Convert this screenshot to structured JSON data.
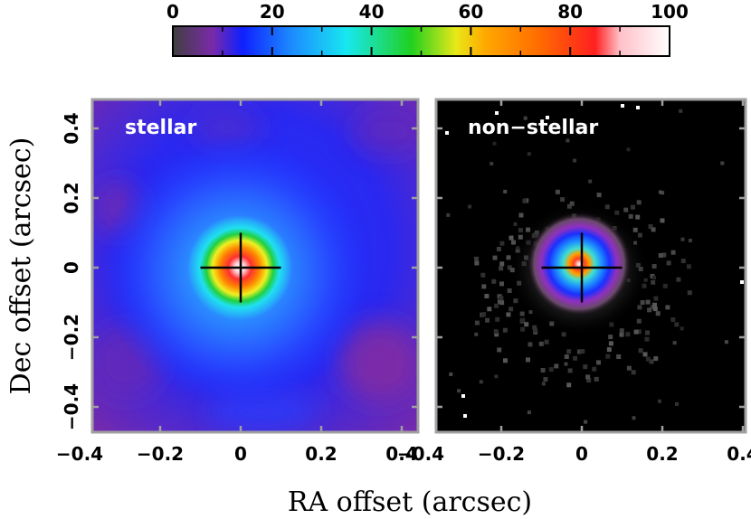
{
  "chart_data": {
    "type": "heatmap",
    "colorbar": {
      "min": 0,
      "max": 100,
      "tick_labels": [
        "0",
        "20",
        "40",
        "60",
        "80",
        "100"
      ],
      "tick_values": [
        0,
        20,
        40,
        60,
        80,
        100
      ],
      "minor_ticks": [
        10,
        30,
        50,
        70,
        90
      ],
      "palette": [
        "#404040",
        "#7a2aa8",
        "#1020ff",
        "#1c8cff",
        "#18e8f0",
        "#20d020",
        "#e8e818",
        "#ffa800",
        "#ff6a00",
        "#ff2020",
        "#ffc0c8",
        "#ffffff"
      ],
      "palette_stops": [
        0,
        8,
        14,
        24,
        35,
        48,
        57,
        63,
        74,
        85,
        90,
        100
      ]
    },
    "xlabel": "RA offset (arcsec)",
    "ylabel": "Dec offset (arcsec)",
    "x_tick_labels": [
      "−0.4",
      "−0.2",
      "0",
      "0.2",
      "0.4"
    ],
    "x_ticks": [
      -0.4,
      -0.2,
      0,
      0.2,
      0.4
    ],
    "y_tick_labels": [
      "−0.4",
      "−0.2",
      "0",
      "0.2",
      "0.4"
    ],
    "y_ticks": [
      -0.4,
      -0.2,
      0,
      0.2,
      0.4
    ],
    "xlim": [
      -0.45,
      0.47
    ],
    "ylim": [
      -0.46,
      0.48
    ],
    "panels": [
      {
        "label": "stellar",
        "background_level": 18,
        "peak_level": 100,
        "crosshair_center": [
          0,
          0
        ],
        "crosshair_half_length": 0.1
      },
      {
        "label": "non−stellar",
        "background_level": 0,
        "peak_level": 100,
        "crosshair_center": [
          0,
          0
        ],
        "crosshair_half_length": 0.1
      }
    ]
  }
}
